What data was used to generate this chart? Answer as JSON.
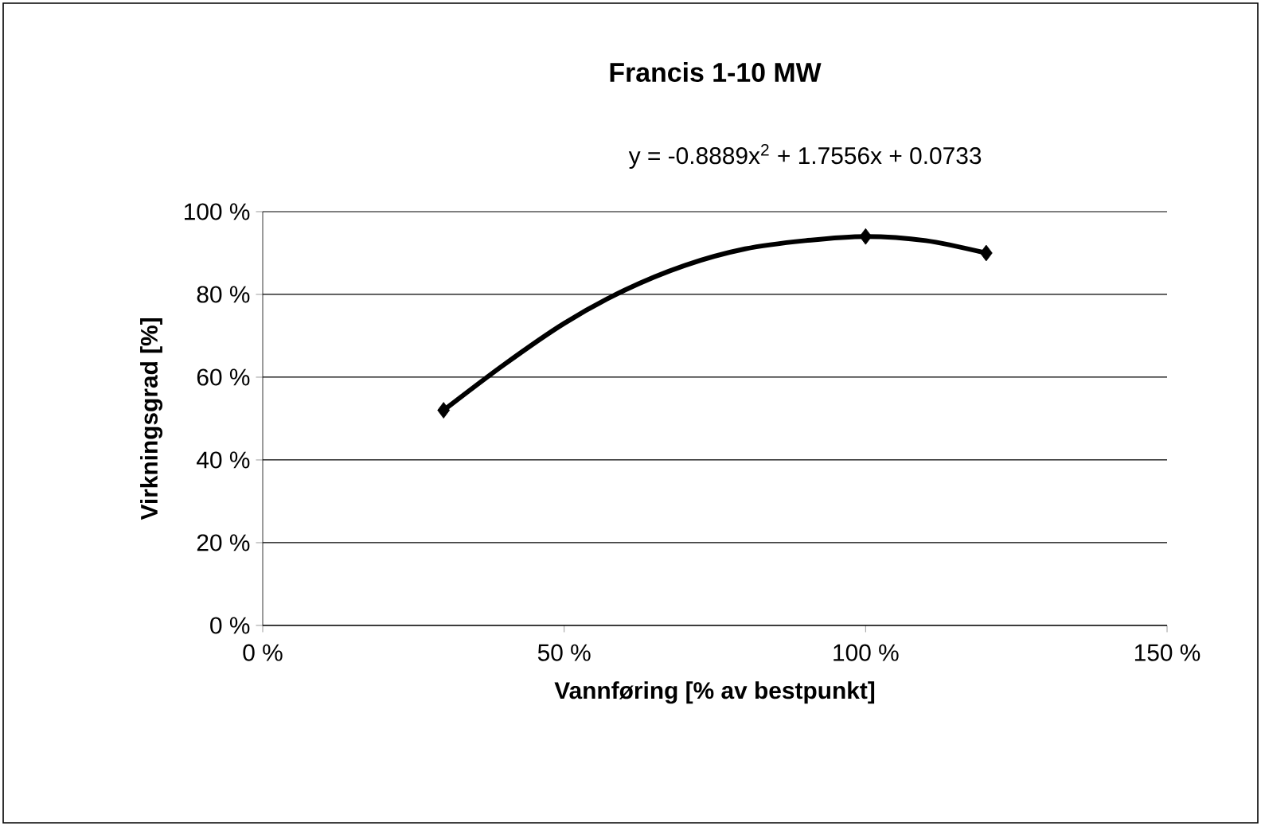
{
  "chart_data": {
    "type": "scatter",
    "title": "Francis 1-10 MW",
    "xlabel": "Vannføring [% av bestpunkt]",
    "ylabel": "Virkningsgrad [%]",
    "annotations": [
      "y = -0.8889x$^{2}$ + 1.7556x + 0.0733"
    ],
    "series": [
      {
        "color": "#000000",
        "marker": "diamond",
        "x": [
          30,
          100,
          120
        ],
        "values": [
          52,
          94,
          90
        ]
      },
      {
        "type": "line",
        "color": "#000000",
        "marker": "none",
        "line_style": "solid",
        "x": [
          30,
          40,
          50,
          60,
          70,
          80,
          90,
          100,
          110,
          120
        ],
        "values": [
          52,
          63,
          73,
          81,
          87,
          91,
          93,
          94,
          93,
          90
        ]
      }
    ],
    "xlim": [
      0,
      150
    ],
    "ylim": [
      0,
      100
    ],
    "xticks": [
      {
        "value": 0,
        "label": "0 %"
      },
      {
        "value": 50,
        "label": "50 %"
      },
      {
        "value": 100,
        "label": "100 %"
      },
      {
        "value": 150,
        "label": "150 %"
      }
    ],
    "yticks": [
      {
        "value": 0,
        "label": "0 %"
      },
      {
        "value": 20,
        "label": "20 %"
      },
      {
        "value": 40,
        "label": "40 %"
      },
      {
        "value": 60,
        "label": "60 %"
      },
      {
        "value": 80,
        "label": "80 %"
      },
      {
        "value": 100,
        "label": "100 %"
      }
    ],
    "grid": "y"
  }
}
